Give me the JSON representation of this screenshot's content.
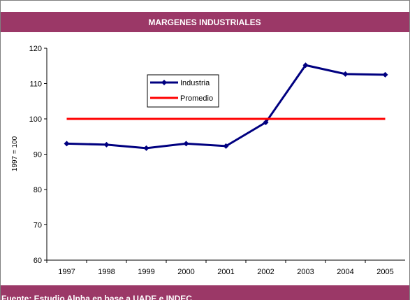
{
  "chart_data": {
    "type": "line",
    "title": "MARGENES INDUSTRIALES",
    "y_label": "1997 = 100",
    "source": "Fuente: Estudio Alpha en base a UADE e INDEC",
    "categories": [
      "1997",
      "1998",
      "1999",
      "2000",
      "2001",
      "2002",
      "2003",
      "2004",
      "2005"
    ],
    "series": [
      {
        "name": "Industria",
        "color": "#000080",
        "marker": "diamond",
        "values": [
          93,
          92.7,
          91.7,
          93,
          92.3,
          99,
          115.2,
          112.7,
          112.5
        ]
      },
      {
        "name": "Promedio",
        "color": "#ff0000",
        "marker": "none",
        "values": [
          100,
          100,
          100,
          100,
          100,
          100,
          100,
          100,
          100
        ]
      }
    ],
    "ylim": [
      60,
      120
    ],
    "yticks": [
      60,
      70,
      80,
      90,
      100,
      110,
      120
    ],
    "grid": false,
    "legend": "upper-left"
  }
}
